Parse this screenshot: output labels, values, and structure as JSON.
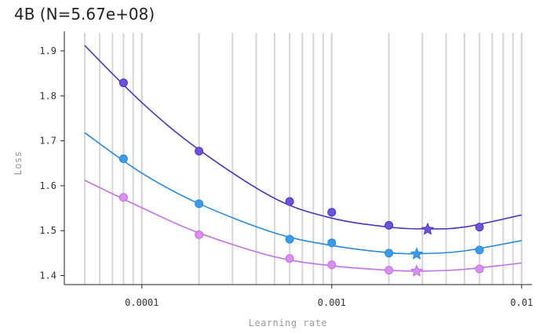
{
  "chart_data": {
    "type": "scatter",
    "title": "4B (N=5.67e+08)",
    "xlabel": "Learning rate",
    "ylabel": "Loss",
    "x_scale": "log",
    "xlim": [
      5e-05,
      0.01
    ],
    "ylim": [
      1.38,
      1.94
    ],
    "x_ticks": [
      {
        "value": 0.0001,
        "label": "0.0001"
      },
      {
        "value": 0.001,
        "label": "0.001"
      },
      {
        "value": 0.01,
        "label": "0.01"
      }
    ],
    "y_ticks": [
      {
        "value": 1.4,
        "label": "1.4"
      },
      {
        "value": 1.5,
        "label": "1.5"
      },
      {
        "value": 1.6,
        "label": "1.6"
      },
      {
        "value": 1.7,
        "label": "1.7"
      },
      {
        "value": 1.8,
        "label": "1.8"
      },
      {
        "value": 1.9,
        "label": "1.9"
      }
    ],
    "grid": "vertical",
    "series": [
      {
        "color": "#6f52df",
        "line_color": "#4a35b8",
        "points": [
          {
            "x": 8e-05,
            "y": 1.829
          },
          {
            "x": 0.0002,
            "y": 1.677
          },
          {
            "x": 0.0006,
            "y": 1.565
          },
          {
            "x": 0.001,
            "y": 1.541
          },
          {
            "x": 0.002,
            "y": 1.512
          },
          {
            "x": 0.006,
            "y": 1.508
          }
        ],
        "optimum": {
          "x": 0.0032,
          "y": 1.503
        },
        "fit": [
          {
            "x": 5e-05,
            "y": 1.912
          },
          {
            "x": 0.0001,
            "y": 1.785
          },
          {
            "x": 0.0002,
            "y": 1.68
          },
          {
            "x": 0.0005,
            "y": 1.572
          },
          {
            "x": 0.001,
            "y": 1.528
          },
          {
            "x": 0.002,
            "y": 1.508
          },
          {
            "x": 0.0032,
            "y": 1.504
          },
          {
            "x": 0.005,
            "y": 1.508
          },
          {
            "x": 0.01,
            "y": 1.535
          }
        ]
      },
      {
        "color": "#3b9bf0",
        "line_color": "#2a8ad4",
        "points": [
          {
            "x": 8e-05,
            "y": 1.66
          },
          {
            "x": 0.0002,
            "y": 1.56
          },
          {
            "x": 0.0006,
            "y": 1.481
          },
          {
            "x": 0.001,
            "y": 1.473
          },
          {
            "x": 0.002,
            "y": 1.45
          },
          {
            "x": 0.006,
            "y": 1.457
          }
        ],
        "optimum": {
          "x": 0.0028,
          "y": 1.448
        },
        "fit": [
          {
            "x": 5e-05,
            "y": 1.718
          },
          {
            "x": 0.0001,
            "y": 1.628
          },
          {
            "x": 0.0002,
            "y": 1.56
          },
          {
            "x": 0.0005,
            "y": 1.495
          },
          {
            "x": 0.001,
            "y": 1.467
          },
          {
            "x": 0.002,
            "y": 1.451
          },
          {
            "x": 0.003,
            "y": 1.449
          },
          {
            "x": 0.005,
            "y": 1.455
          },
          {
            "x": 0.01,
            "y": 1.478
          }
        ]
      },
      {
        "color": "#d98ef0",
        "line_color": "#c070e3",
        "points": [
          {
            "x": 8e-05,
            "y": 1.574
          },
          {
            "x": 0.0002,
            "y": 1.491
          },
          {
            "x": 0.0006,
            "y": 1.438
          },
          {
            "x": 0.001,
            "y": 1.424
          },
          {
            "x": 0.002,
            "y": 1.412
          },
          {
            "x": 0.006,
            "y": 1.415
          }
        ],
        "optimum": {
          "x": 0.0028,
          "y": 1.41
        },
        "fit": [
          {
            "x": 5e-05,
            "y": 1.612
          },
          {
            "x": 0.0001,
            "y": 1.551
          },
          {
            "x": 0.0002,
            "y": 1.495
          },
          {
            "x": 0.0005,
            "y": 1.442
          },
          {
            "x": 0.001,
            "y": 1.422
          },
          {
            "x": 0.002,
            "y": 1.412
          },
          {
            "x": 0.003,
            "y": 1.41
          },
          {
            "x": 0.005,
            "y": 1.414
          },
          {
            "x": 0.01,
            "y": 1.428
          }
        ]
      }
    ]
  }
}
